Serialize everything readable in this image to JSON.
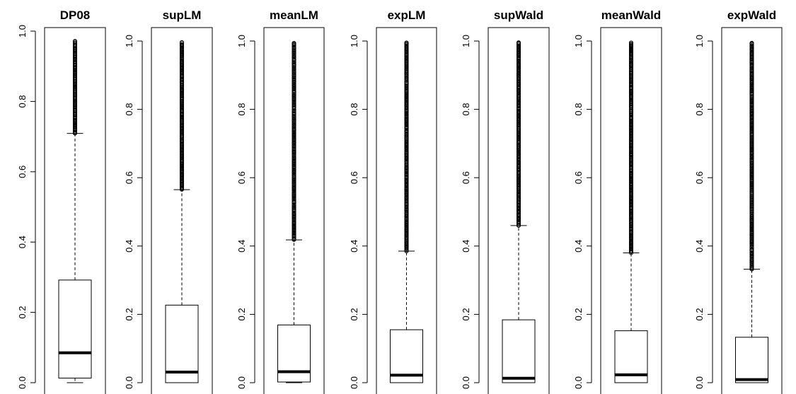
{
  "chart_data": [
    {
      "type": "box",
      "title": "DP08",
      "ylim": [
        0,
        1.0
      ],
      "yticks": [
        "0.0",
        "0.2",
        "0.4",
        "0.6",
        "0.8",
        "1.0"
      ],
      "min": 0.0,
      "q1": 0.013,
      "median": 0.085,
      "q3": 0.292,
      "whisker_high": 0.709,
      "outliers_range": [
        0.709,
        0.972
      ]
    },
    {
      "type": "box",
      "title": "supLM",
      "ylim": [
        0,
        1.0
      ],
      "yticks": [
        "0.0",
        "0.2",
        "0.4",
        "0.6",
        "0.8",
        "1.0"
      ],
      "min": 0.0,
      "q1": 0.0,
      "median": 0.031,
      "q3": 0.227,
      "whisker_high": 0.565,
      "outliers_range": [
        0.565,
        0.996
      ]
    },
    {
      "type": "box",
      "title": "meanLM",
      "ylim": [
        0,
        1.0
      ],
      "yticks": [
        "0.0",
        "0.2",
        "0.4",
        "0.6",
        "0.8",
        "1.0"
      ],
      "min": 0.0,
      "q1": 0.002,
      "median": 0.032,
      "q3": 0.169,
      "whisker_high": 0.418,
      "outliers_range": [
        0.418,
        0.994
      ]
    },
    {
      "type": "box",
      "title": "expLM",
      "ylim": [
        0,
        1.0
      ],
      "yticks": [
        "0.0",
        "0.2",
        "0.4",
        "0.6",
        "0.8",
        "1.0"
      ],
      "min": 0.0,
      "q1": 0.0,
      "median": 0.022,
      "q3": 0.155,
      "whisker_high": 0.385,
      "outliers_range": [
        0.385,
        0.995
      ]
    },
    {
      "type": "box",
      "title": "supWald",
      "ylim": [
        0,
        1.0
      ],
      "yticks": [
        "0.0",
        "0.2",
        "0.4",
        "0.6",
        "0.8",
        "1.0"
      ],
      "min": 0.0,
      "q1": 0.0,
      "median": 0.013,
      "q3": 0.184,
      "whisker_high": 0.46,
      "outliers_range": [
        0.46,
        0.996
      ]
    },
    {
      "type": "box",
      "title": "meanWald",
      "ylim": [
        0,
        1.0
      ],
      "yticks": [
        "0.0",
        "0.2",
        "0.4",
        "0.6",
        "0.8",
        "1.0"
      ],
      "min": 0.0,
      "q1": 0.0,
      "median": 0.023,
      "q3": 0.152,
      "whisker_high": 0.38,
      "outliers_range": [
        0.38,
        0.995
      ]
    },
    {
      "type": "box",
      "title": "expWald",
      "ylim": [
        0,
        1.0
      ],
      "yticks": [
        "0.0",
        "0.2",
        "0.4",
        "0.6",
        "0.8",
        "1.0"
      ],
      "min": 0.0,
      "q1": 0.0,
      "median": 0.009,
      "q3": 0.133,
      "whisker_high": 0.332,
      "outliers_range": [
        0.332,
        0.995
      ]
    }
  ]
}
